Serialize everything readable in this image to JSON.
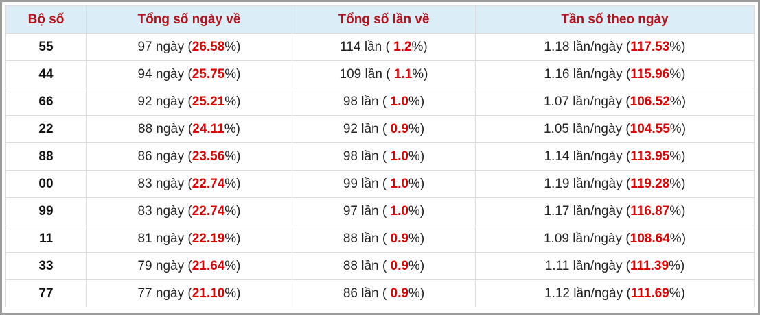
{
  "table": {
    "header": [
      "Bộ số",
      "Tổng số ngày về",
      "Tổng số lần về",
      "Tần số theo ngày"
    ],
    "rows": [
      [
        "55",
        [
          "97 ngày (",
          "26.58",
          "%)"
        ],
        [
          "114 lần ( ",
          "1.2",
          "%)"
        ],
        [
          "1.18 lần/ngày (",
          "117.53",
          "%)"
        ]
      ],
      [
        "44",
        [
          "94 ngày (",
          "25.75",
          "%)"
        ],
        [
          "109 lần ( ",
          "1.1",
          "%)"
        ],
        [
          "1.16 lần/ngày (",
          "115.96",
          "%)"
        ]
      ],
      [
        "66",
        [
          "92 ngày (",
          "25.21",
          "%)"
        ],
        [
          "98 lần ( ",
          "1.0",
          "%)"
        ],
        [
          "1.07 lần/ngày (",
          "106.52",
          "%)"
        ]
      ],
      [
        "22",
        [
          "88 ngày (",
          "24.11",
          "%)"
        ],
        [
          "92 lần ( ",
          "0.9",
          "%)"
        ],
        [
          "1.05 lần/ngày (",
          "104.55",
          "%)"
        ]
      ],
      [
        "88",
        [
          "86 ngày (",
          "23.56",
          "%)"
        ],
        [
          "98 lần ( ",
          "1.0",
          "%)"
        ],
        [
          "1.14 lần/ngày (",
          "113.95",
          "%)"
        ]
      ],
      [
        "00",
        [
          "83 ngày (",
          "22.74",
          "%)"
        ],
        [
          "99 lần ( ",
          "1.0",
          "%)"
        ],
        [
          "1.19 lần/ngày (",
          "119.28",
          "%)"
        ]
      ],
      [
        "99",
        [
          "83 ngày (",
          "22.74",
          "%)"
        ],
        [
          "97 lần ( ",
          "1.0",
          "%)"
        ],
        [
          "1.17 lần/ngày (",
          "116.87",
          "%)"
        ]
      ],
      [
        "11",
        [
          "81 ngày (",
          "22.19",
          "%)"
        ],
        [
          "88 lần ( ",
          "0.9",
          "%)"
        ],
        [
          "1.09 lần/ngày (",
          "108.64",
          "%)"
        ]
      ],
      [
        "33",
        [
          "79 ngày (",
          "21.64",
          "%)"
        ],
        [
          "88 lần ( ",
          "0.9",
          "%)"
        ],
        [
          "1.11 lần/ngày (",
          "111.39",
          "%)"
        ]
      ],
      [
        "77",
        [
          "77 ngày (",
          "21.10",
          "%)"
        ],
        [
          "86 lần ( ",
          "0.9",
          "%)"
        ],
        [
          "1.12 lần/ngày (",
          "111.69",
          "%)"
        ]
      ]
    ]
  }
}
